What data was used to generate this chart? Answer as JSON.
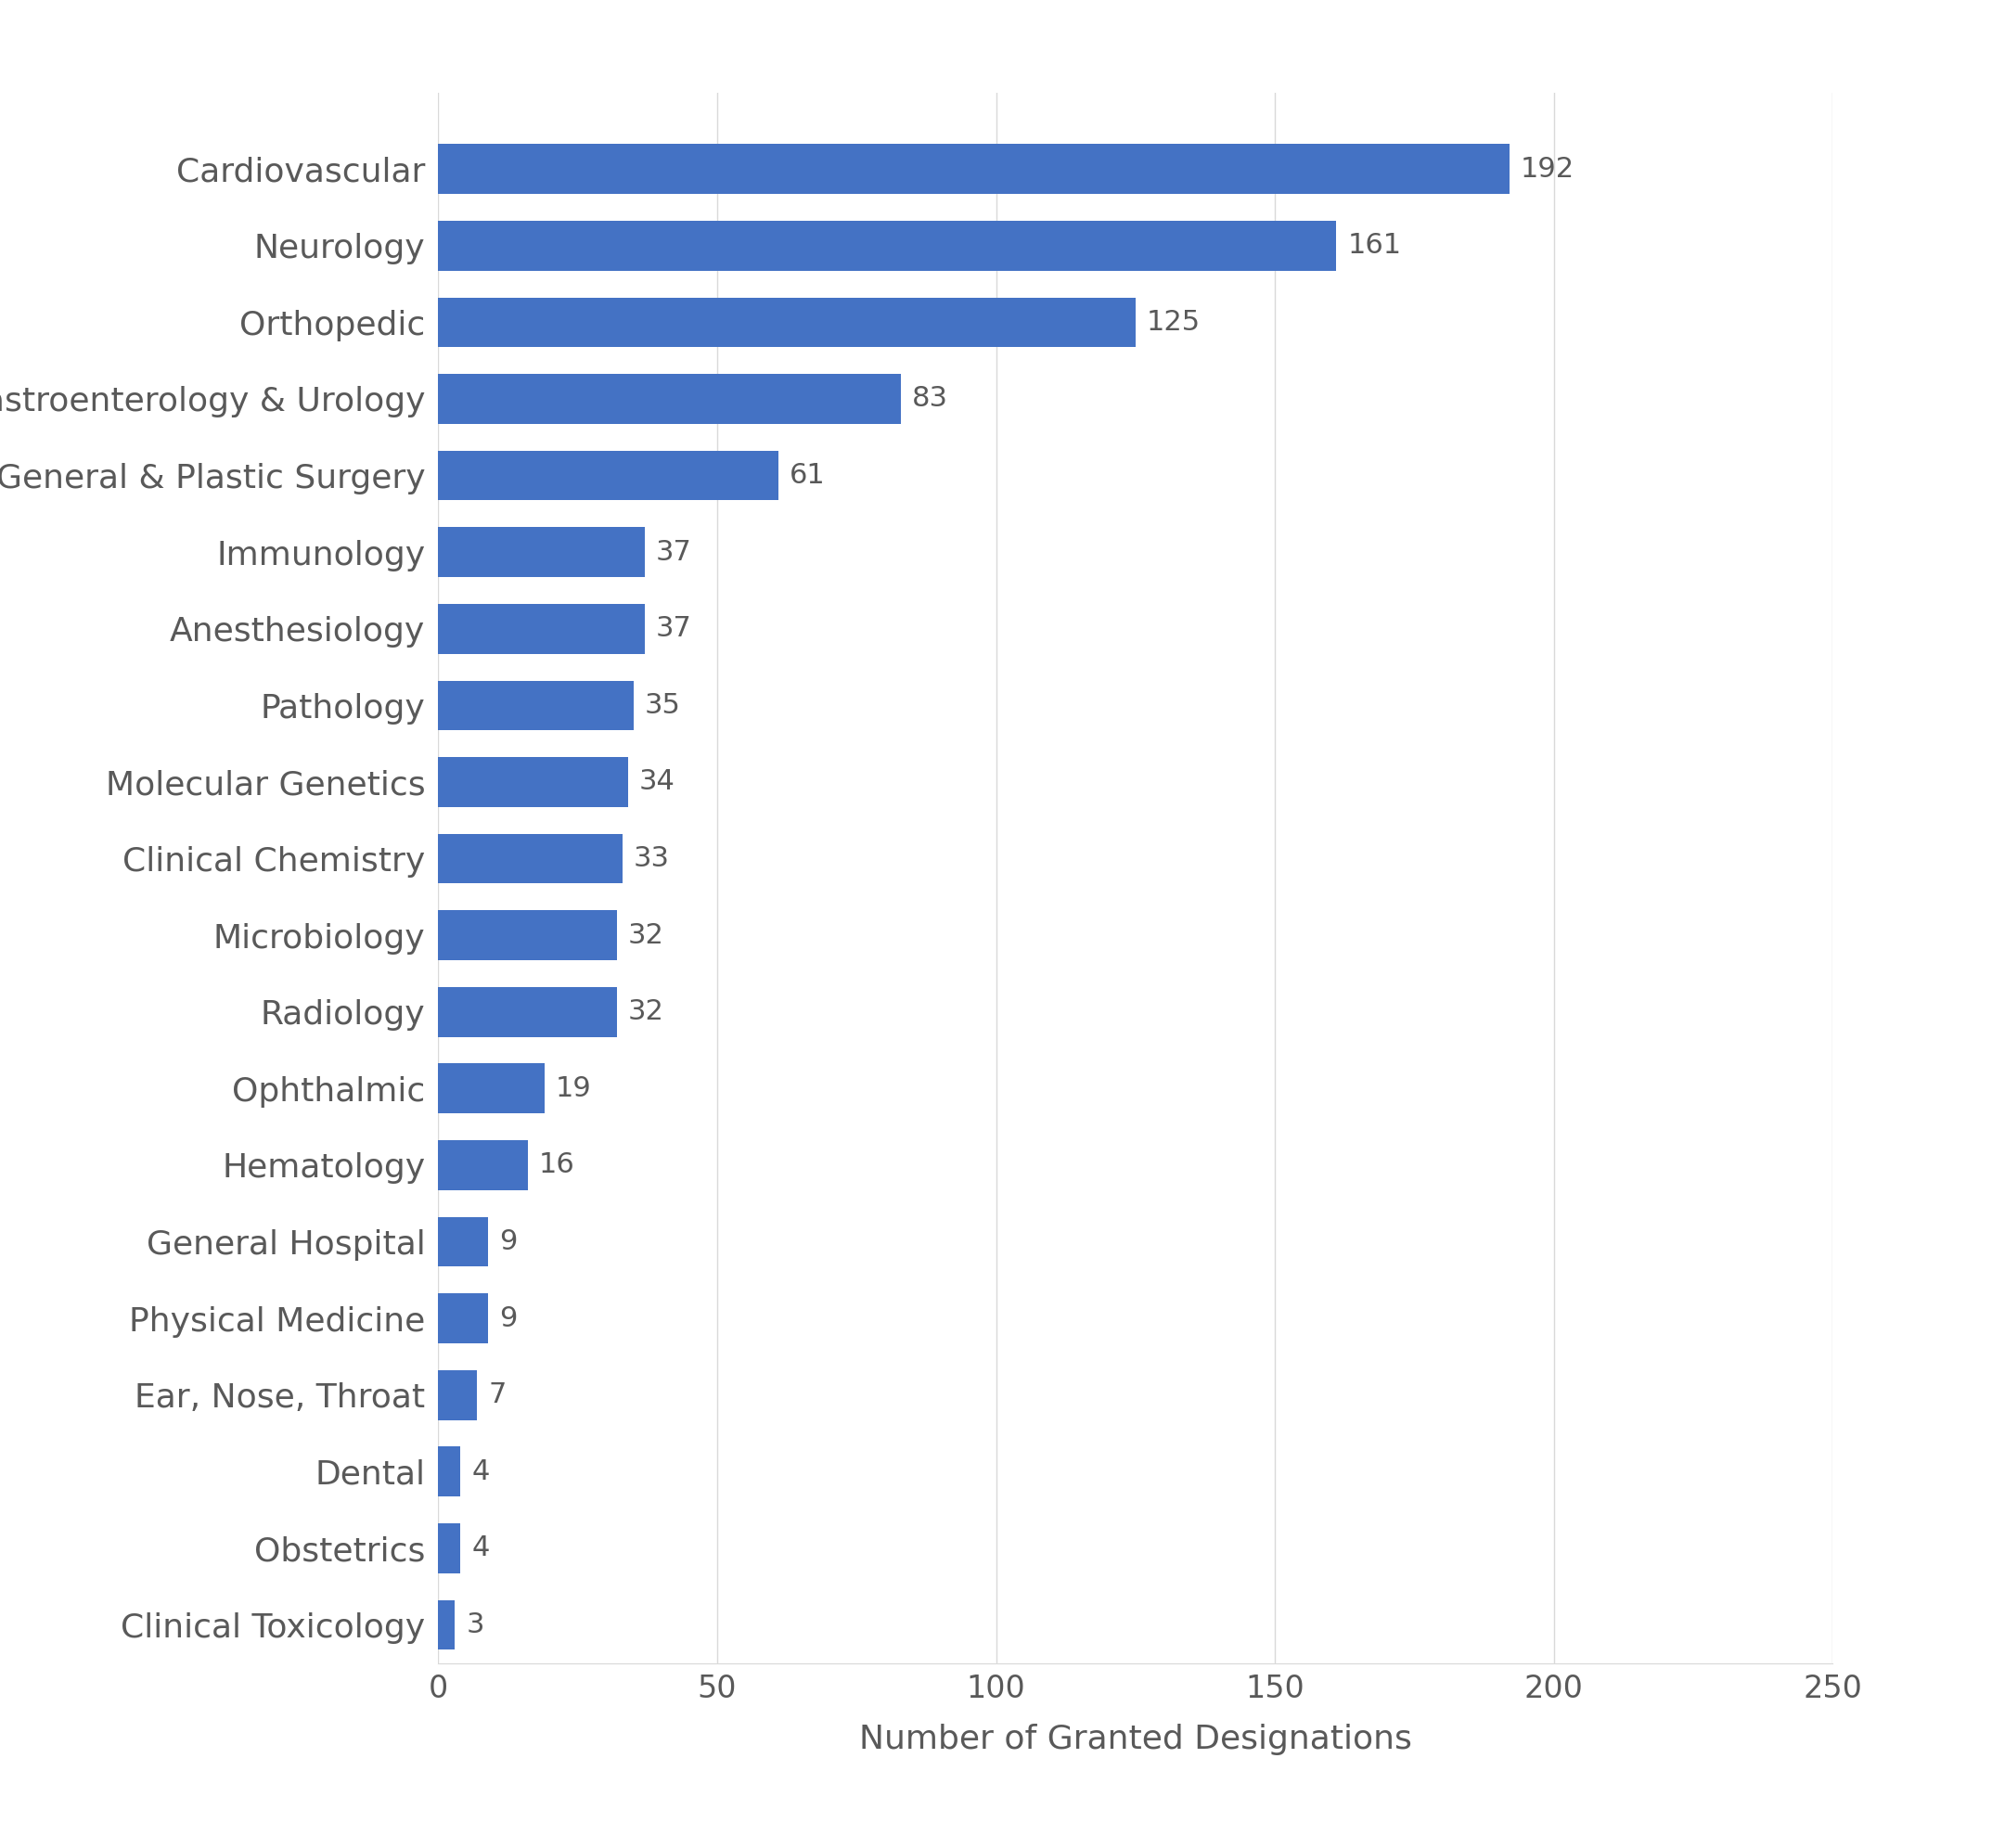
{
  "categories": [
    "Clinical Toxicology",
    "Obstetrics",
    "Dental",
    "Ear, Nose, Throat",
    "Physical Medicine",
    "General Hospital",
    "Hematology",
    "Ophthalmic",
    "Radiology",
    "Microbiology",
    "Clinical Chemistry",
    "Molecular Genetics",
    "Pathology",
    "Anesthesiology",
    "Immunology",
    "General & Plastic Surgery",
    "Gastroenterology & Urology",
    "Orthopedic",
    "Neurology",
    "Cardiovascular"
  ],
  "values": [
    3,
    4,
    4,
    7,
    9,
    9,
    16,
    19,
    32,
    32,
    33,
    34,
    35,
    37,
    37,
    61,
    83,
    125,
    161,
    192
  ],
  "bar_color": "#4472C4",
  "xlabel": "Number of Granted Designations",
  "xlim": [
    0,
    250
  ],
  "xticks": [
    0,
    50,
    100,
    150,
    200,
    250
  ],
  "background_color": "#ffffff",
  "text_color": "#595959",
  "label_fontsize": 26,
  "tick_fontsize": 24,
  "xlabel_fontsize": 26,
  "value_label_fontsize": 22,
  "bar_height": 0.65,
  "grid_color": "#d9d9d9",
  "grid_linewidth": 1.0
}
